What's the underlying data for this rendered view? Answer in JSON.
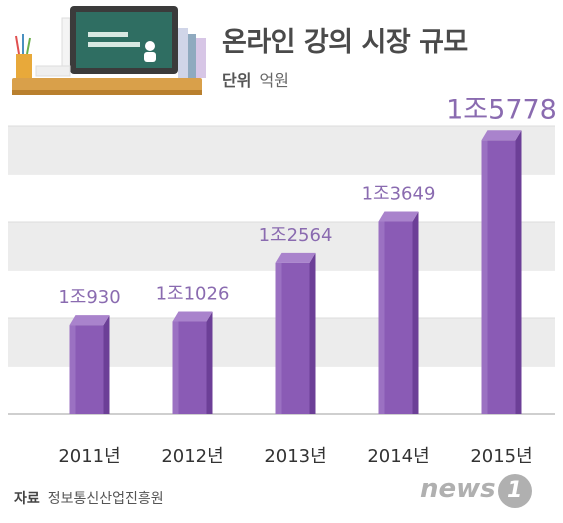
{
  "title": "온라인 강의 시장 규모",
  "unit": {
    "label": "단위",
    "value": "억원"
  },
  "source": {
    "label": "자료",
    "value": "정보통신산업진흥원"
  },
  "logo": {
    "text": "news",
    "mark": "1"
  },
  "colors": {
    "bar_front": "#8a5bb5",
    "bar_side": "#6c3f97",
    "bar_top": "#a983cc",
    "value_label": "#8a6bb0",
    "grid_band": "#ececec"
  },
  "chart_data": {
    "type": "bar",
    "title": "온라인 강의 시장 규모",
    "xlabel": "",
    "ylabel": "",
    "unit": "억원",
    "categories": [
      "2011년",
      "2012년",
      "2013년",
      "2014년",
      "2015년"
    ],
    "values": [
      10930,
      11026,
      12564,
      13649,
      15778
    ],
    "data_labels": [
      "1조930",
      "1조1026",
      "1조2564",
      "1조3649",
      "1조5778"
    ],
    "ylim": [
      8600,
      16100
    ],
    "grid": true,
    "legend": "none"
  }
}
